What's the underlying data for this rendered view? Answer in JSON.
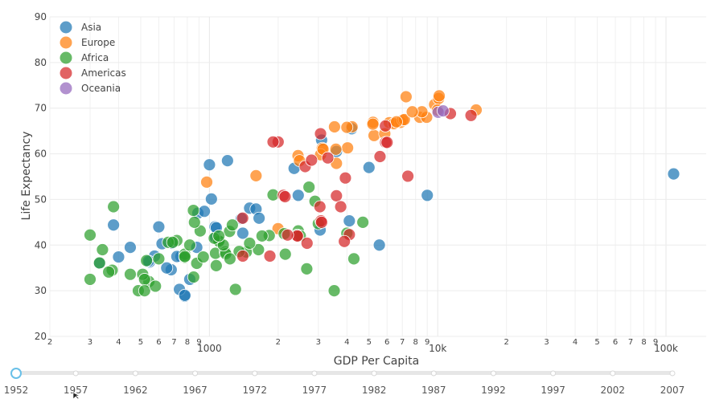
{
  "chart_data": {
    "type": "scatter",
    "title": "",
    "xlabel": "GDP Per Capita",
    "ylabel": "Life Expectancy",
    "xscale": "log",
    "xlim": [
      200,
      150000
    ],
    "ylim": [
      20,
      90
    ],
    "yticks": [
      20,
      30,
      40,
      50,
      60,
      70,
      80,
      90
    ],
    "xticks_major": [
      {
        "value": 1000,
        "label": "1000"
      },
      {
        "value": 10000,
        "label": "10k"
      },
      {
        "value": 100000,
        "label": "100k"
      }
    ],
    "xticks_minor": [
      {
        "value": 200,
        "label": "2"
      },
      {
        "value": 300,
        "label": "3"
      },
      {
        "value": 400,
        "label": "4"
      },
      {
        "value": 500,
        "label": "5"
      },
      {
        "value": 600,
        "label": "6"
      },
      {
        "value": 700,
        "label": "7"
      },
      {
        "value": 800,
        "label": "8"
      },
      {
        "value": 900,
        "label": "9"
      },
      {
        "value": 2000,
        "label": "2"
      },
      {
        "value": 3000,
        "label": "3"
      },
      {
        "value": 4000,
        "label": "4"
      },
      {
        "value": 5000,
        "label": "5"
      },
      {
        "value": 6000,
        "label": "6"
      },
      {
        "value": 7000,
        "label": "7"
      },
      {
        "value": 8000,
        "label": "8"
      },
      {
        "value": 9000,
        "label": "9"
      },
      {
        "value": 20000,
        "label": "2"
      },
      {
        "value": 30000,
        "label": "3"
      },
      {
        "value": 40000,
        "label": "4"
      },
      {
        "value": 50000,
        "label": "5"
      },
      {
        "value": 60000,
        "label": "6"
      },
      {
        "value": 70000,
        "label": "7"
      },
      {
        "value": 80000,
        "label": "8"
      },
      {
        "value": 90000,
        "label": "9"
      }
    ],
    "legend_position": "top-left",
    "series": [
      {
        "name": "Asia",
        "color": "#1f77b4",
        "points": [
          [
            780,
            28.8
          ],
          [
            2449,
            50.9
          ],
          [
            1063,
            41.7
          ],
          [
            1058,
            44.0
          ],
          [
            739,
            30.3
          ],
          [
            400,
            37.4
          ],
          [
            3054,
            43.3
          ],
          [
            546,
            36.3
          ],
          [
            750,
            37.5
          ],
          [
            575,
            37.6
          ],
          [
            540,
            36.5
          ],
          [
            684,
            40.4
          ],
          [
            1072,
            43.8
          ],
          [
            1400,
            42.6
          ],
          [
            2350,
            56.8
          ],
          [
            1500,
            48.1
          ],
          [
            9000,
            50.9
          ],
          [
            108000,
            55.6
          ],
          [
            880,
            39.5
          ],
          [
            890,
            47.0
          ],
          [
            1200,
            58.5
          ],
          [
            620,
            40.3
          ],
          [
            820,
            32.5
          ],
          [
            680,
            34.6
          ],
          [
            720,
            37.5
          ],
          [
            1380,
            45.8
          ],
          [
            600,
            44.0
          ],
          [
            3100,
            63.0
          ],
          [
            4200,
            65.5
          ],
          [
            5000,
            57.0
          ],
          [
            650,
            35.0
          ],
          [
            780,
            29.0
          ],
          [
            3600,
            60.5
          ],
          [
            1600,
            47.9
          ],
          [
            1000,
            57.6
          ],
          [
            1020,
            50.1
          ],
          [
            1650,
            45.9
          ],
          [
            5550,
            40.0
          ],
          [
            4100,
            45.3
          ],
          [
            950,
            47.4
          ],
          [
            450,
            39.5
          ],
          [
            330,
            36.0
          ],
          [
            380,
            44.4
          ]
        ]
      },
      {
        "name": "Europe",
        "color": "#ff7f0e",
        "points": [
          [
            1600,
            55.2
          ],
          [
            6137,
            66.8
          ],
          [
            8343,
            68.0
          ],
          [
            973,
            53.8
          ],
          [
            2444,
            59.6
          ],
          [
            3119,
            61.2
          ],
          [
            6876,
            66.9
          ],
          [
            9692,
            70.8
          ],
          [
            6424,
            66.6
          ],
          [
            7030,
            67.4
          ],
          [
            7144,
            67.5
          ],
          [
            3531,
            65.9
          ],
          [
            5263,
            64.0
          ],
          [
            7268,
            72.5
          ],
          [
            5210,
            66.9
          ],
          [
            4215,
            65.9
          ],
          [
            8942,
            68.0
          ],
          [
            10095,
            72.1
          ],
          [
            10149,
            72.7
          ],
          [
            4029,
            61.3
          ],
          [
            3068,
            59.8
          ],
          [
            3144,
            61.0
          ],
          [
            3581,
            61.0
          ],
          [
            2480,
            58.5
          ],
          [
            5862,
            64.4
          ],
          [
            4000,
            65.8
          ],
          [
            8527,
            69.2
          ],
          [
            14734,
            69.6
          ],
          [
            7738,
            69.2
          ],
          [
            9980,
            69.6
          ],
          [
            1998,
            43.6
          ],
          [
            3600,
            57.9
          ],
          [
            5200,
            66.5
          ],
          [
            6600,
            67.0
          ]
        ]
      },
      {
        "name": "Africa",
        "color": "#2ca02c",
        "points": [
          [
            2449,
            43.1
          ],
          [
            3521,
            30.0
          ],
          [
            1063,
            38.2
          ],
          [
            851,
            47.6
          ],
          [
            543,
            32.0
          ],
          [
            340,
            39.0
          ],
          [
            1173,
            38.5
          ],
          [
            1071,
            35.5
          ],
          [
            1179,
            38.1
          ],
          [
            1103,
            40.7
          ],
          [
            1828,
            42.1
          ],
          [
            2126,
            42.5
          ],
          [
            780,
            38.0
          ],
          [
            2669,
            34.8
          ],
          [
            375,
            34.5
          ],
          [
            362,
            34.1
          ],
          [
            4293,
            37.0
          ],
          [
            488,
            30.0
          ],
          [
            911,
            43.1
          ],
          [
            510,
            33.6
          ],
          [
            520,
            32.5
          ],
          [
            1640,
            39.0
          ],
          [
            1225,
            43.0
          ],
          [
            853,
            33.0
          ],
          [
            4000,
            42.6
          ],
          [
            2423,
            42.2
          ],
          [
            1450,
            38.5
          ],
          [
            600,
            37.0
          ],
          [
            1300,
            30.3
          ],
          [
            880,
            36.0
          ],
          [
            1500,
            40.4
          ],
          [
            1900,
            51.0
          ],
          [
            780,
            37.3
          ],
          [
            1100,
            40.9
          ],
          [
            4700,
            45.0
          ],
          [
            380,
            48.4
          ],
          [
            300,
            32.5
          ],
          [
            720,
            41.0
          ],
          [
            1260,
            44.4
          ],
          [
            1350,
            38.6
          ],
          [
            660,
            40.6
          ],
          [
            940,
            37.4
          ],
          [
            2500,
            42.0
          ],
          [
            1700,
            42.0
          ],
          [
            2900,
            49.6
          ],
          [
            860,
            45.0
          ],
          [
            330,
            36.1
          ],
          [
            450,
            33.6
          ],
          [
            530,
            36.6
          ],
          [
            3000,
            44.7
          ],
          [
            690,
            40.6
          ],
          [
            1150,
            40.0
          ],
          [
            820,
            40.0
          ],
          [
            2150,
            38.0
          ],
          [
            1050,
            41.5
          ],
          [
            780,
            37.5
          ],
          [
            2730,
            52.7
          ],
          [
            300,
            42.2
          ],
          [
            1100,
            42.0
          ],
          [
            520,
            30.0
          ],
          [
            580,
            31.0
          ],
          [
            1230,
            37.0
          ]
        ]
      },
      {
        "name": "Americas",
        "color": "#d62728",
        "points": [
          [
            5911,
            62.5
          ],
          [
            2677,
            40.4
          ],
          [
            2108,
            50.9
          ],
          [
            11367,
            68.8
          ],
          [
            3940,
            54.7
          ],
          [
            2144,
            50.6
          ],
          [
            2627,
            57.2
          ],
          [
            5587,
            59.4
          ],
          [
            1398,
            45.9
          ],
          [
            3048,
            48.4
          ],
          [
            3081,
            45.3
          ],
          [
            2429,
            42.0
          ],
          [
            2428,
            42.0
          ],
          [
            1840,
            37.6
          ],
          [
            1400,
            37.6
          ],
          [
            2000,
            62.6
          ],
          [
            3600,
            50.8
          ],
          [
            3759,
            48.4
          ],
          [
            3067,
            64.4
          ],
          [
            4100,
            42.3
          ],
          [
            1900,
            62.6
          ],
          [
            5900,
            66.1
          ],
          [
            3300,
            59.1
          ],
          [
            6000,
            62.5
          ],
          [
            7400,
            55.1
          ],
          [
            13990,
            68.4
          ],
          [
            2800,
            58.6
          ],
          [
            3900,
            40.8
          ],
          [
            2200,
            42.2
          ],
          [
            3100,
            45.0
          ]
        ]
      },
      {
        "name": "Oceania",
        "color": "#9467bd",
        "points": [
          [
            10040,
            69.1
          ],
          [
            10556,
            69.4
          ]
        ]
      }
    ],
    "slider": {
      "years": [
        "1952",
        "1957",
        "1962",
        "1967",
        "1972",
        "1977",
        "1982",
        "1987",
        "1992",
        "1997",
        "2002",
        "2007"
      ],
      "selected": "1952"
    }
  }
}
